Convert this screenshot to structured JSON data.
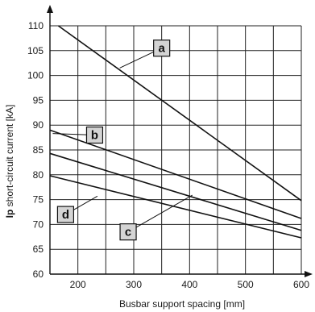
{
  "chart_data": {
    "type": "line",
    "xlabel": "Busbar support spacing [mm]",
    "ylabel_bold": "Ip",
    "ylabel_rest": " short-circuit current [kA]",
    "xlim": [
      150,
      600
    ],
    "ylim": [
      60,
      110
    ],
    "x_ticks": [
      200,
      300,
      400,
      500,
      600
    ],
    "y_ticks": [
      60,
      65,
      70,
      75,
      80,
      85,
      90,
      95,
      100,
      105,
      110
    ],
    "x_grid": [
      200,
      250,
      300,
      350,
      400,
      450,
      500,
      550,
      600
    ],
    "y_grid": [
      65,
      70,
      75,
      80,
      85,
      90,
      95,
      100,
      105,
      110
    ],
    "grid": true,
    "series": [
      {
        "name": "a",
        "x": [
          165,
          600
        ],
        "y": [
          110,
          74.8
        ]
      },
      {
        "name": "b",
        "x": [
          150,
          600
        ],
        "y": [
          89,
          71.2
        ]
      },
      {
        "name": "c",
        "x": [
          150,
          600
        ],
        "y": [
          84.3,
          68.8
        ]
      },
      {
        "name": "d",
        "x": [
          150,
          600
        ],
        "y": [
          79.8,
          67.3
        ]
      }
    ],
    "callouts": [
      {
        "label": "a",
        "box": [
          350,
          105.5
        ],
        "anchor": [
          275,
          101.5
        ]
      },
      {
        "label": "b",
        "box": [
          230,
          88
        ],
        "anchor": [
          155,
          88.3
        ]
      },
      {
        "label": "d",
        "box": [
          178,
          72
        ],
        "anchor": [
          235,
          75.7
        ]
      },
      {
        "label": "c",
        "box": [
          290,
          68.5
        ],
        "anchor": [
          405,
          75.9
        ]
      }
    ]
  }
}
